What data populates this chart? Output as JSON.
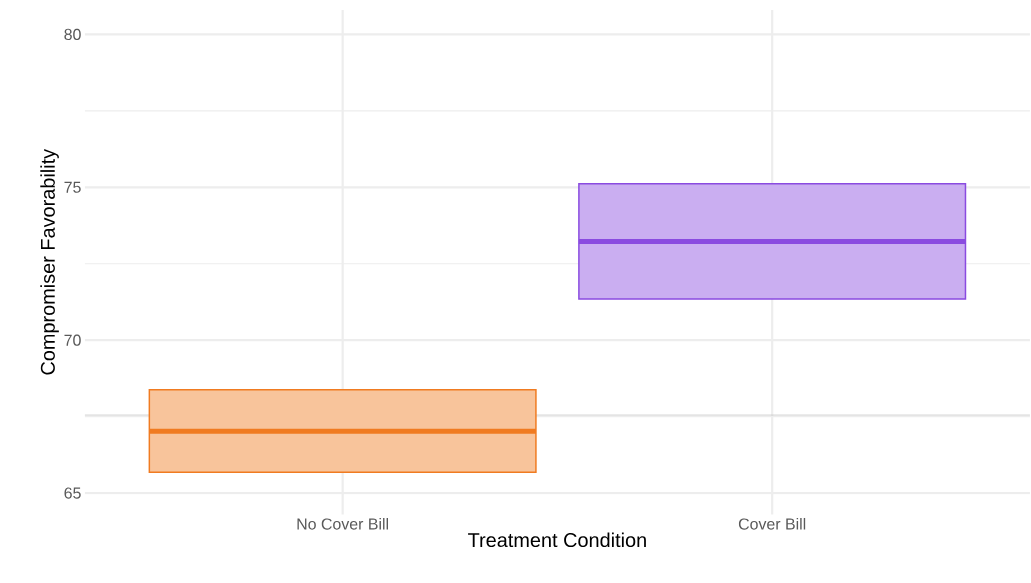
{
  "chart_data": {
    "type": "box",
    "xlabel": "Treatment Condition",
    "ylabel": "Compromiser Favorability",
    "categories": [
      "No Cover Bill",
      "Cover Bill"
    ],
    "boxes": [
      {
        "low": 65.68,
        "q1": 65.68,
        "median": 67.02,
        "q3": 68.38,
        "high": 68.38
      },
      {
        "low": 71.35,
        "q1": 71.35,
        "median": 73.23,
        "q3": 75.12,
        "high": 75.12
      }
    ],
    "colors": [
      "#f07b21",
      "#8a4be0"
    ],
    "ylim": [
      64.3,
      80.8
    ],
    "yticks": [
      65,
      70,
      75,
      80
    ],
    "grid": true,
    "ref_lines": [
      {
        "axis": "y",
        "value": 67.55,
        "color": "#c4c4c4"
      }
    ]
  }
}
